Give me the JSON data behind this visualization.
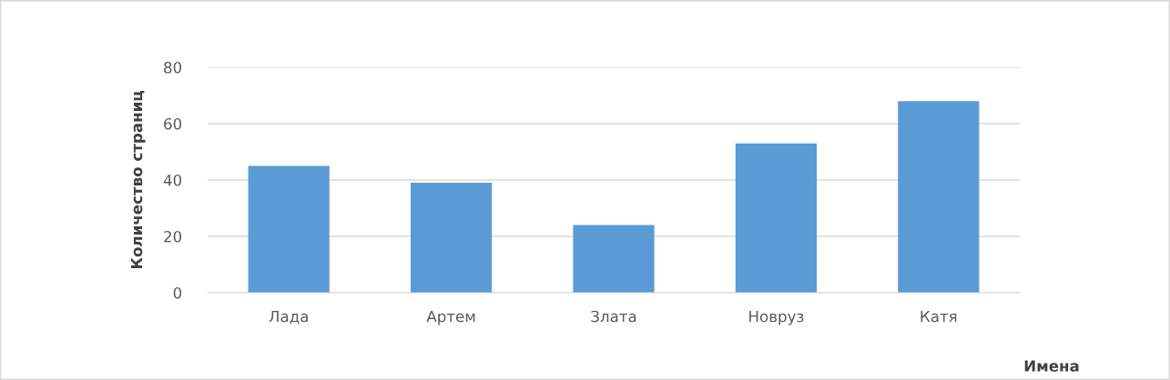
{
  "chart_data": {
    "type": "bar",
    "xlabel": "Имена",
    "ylabel": "Количество страниц",
    "categories": [
      "Лада",
      "Артем",
      "Злата",
      "Новруз",
      "Катя"
    ],
    "values": [
      45,
      39,
      24,
      53,
      68
    ],
    "color": "#5b9bd5",
    "ylim": [
      0,
      80
    ],
    "yticks": [
      0,
      20,
      40,
      60,
      80
    ],
    "grid": "y"
  }
}
